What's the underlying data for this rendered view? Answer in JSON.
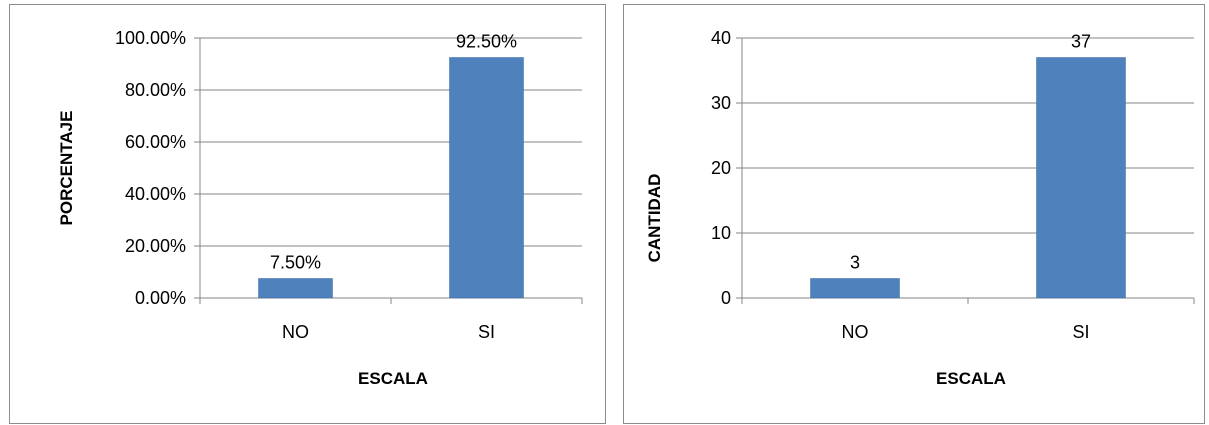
{
  "colors": {
    "bar": "#4f81bd",
    "bar_edge": "#3a6aa6",
    "grid": "#868686"
  },
  "chart_data": [
    {
      "type": "bar",
      "title": "",
      "categories": [
        "NO",
        "SI"
      ],
      "values": [
        7.5,
        92.5
      ],
      "value_labels": [
        "7.50%",
        "92.50%"
      ],
      "ylim": [
        0,
        100
      ],
      "yticks": [
        0,
        20,
        40,
        60,
        80,
        100
      ],
      "ytick_labels": [
        "0.00%",
        "20.00%",
        "40.00%",
        "60.00%",
        "80.00%",
        "100.00%"
      ],
      "xlabel": "ESCALA",
      "ylabel": "PORCENTAJE",
      "grid": true,
      "legend": "none"
    },
    {
      "type": "bar",
      "title": "",
      "categories": [
        "NO",
        "SI"
      ],
      "values": [
        3,
        37
      ],
      "value_labels": [
        "3",
        "37"
      ],
      "ylim": [
        0,
        40
      ],
      "yticks": [
        0,
        10,
        20,
        30,
        40
      ],
      "ytick_labels": [
        "0",
        "10",
        "20",
        "30",
        "40"
      ],
      "xlabel": "ESCALA",
      "ylabel": "CANTIDAD",
      "grid": true,
      "legend": "none"
    }
  ]
}
